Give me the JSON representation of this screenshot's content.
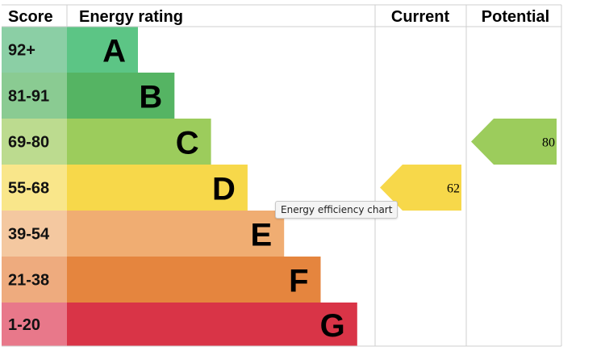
{
  "chart_data": {
    "type": "bar",
    "headers": {
      "score": "Score",
      "rating": "Energy rating",
      "current": "Current",
      "potential": "Potential"
    },
    "bands": [
      {
        "letter": "A",
        "range": "92+",
        "color": "#5cc585",
        "score_color": "#8bcfa5"
      },
      {
        "letter": "B",
        "range": "81-91",
        "color": "#55b463",
        "score_color": "#8acb92"
      },
      {
        "letter": "C",
        "range": "69-80",
        "color": "#9ccc5c",
        "score_color": "#bcdb8f"
      },
      {
        "letter": "D",
        "range": "55-68",
        "color": "#f7d84a",
        "score_color": "#f9e68a"
      },
      {
        "letter": "E",
        "range": "39-54",
        "color": "#f0ad72",
        "score_color": "#f4c8a0"
      },
      {
        "letter": "F",
        "range": "21-38",
        "color": "#e5853e",
        "score_color": "#eeab7e"
      },
      {
        "letter": "G",
        "range": "1-20",
        "color": "#d93447",
        "score_color": "#e8788a"
      }
    ],
    "current": {
      "value": 62,
      "band": "D"
    },
    "potential": {
      "value": 80,
      "band": "C"
    }
  },
  "tooltip": {
    "text": "Energy efficiency chart"
  }
}
